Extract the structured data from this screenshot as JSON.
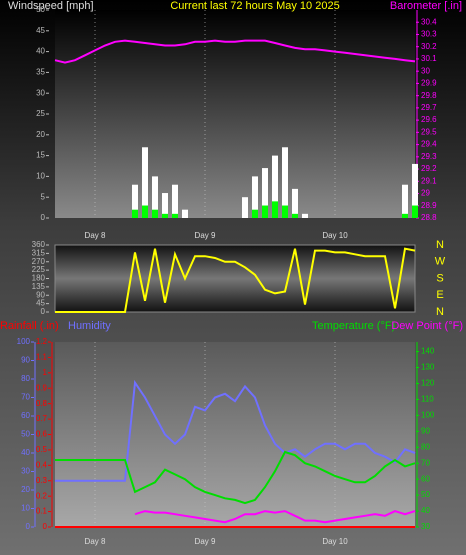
{
  "chart_data": [
    {
      "type": "bar",
      "title": "Current last 72 hours May 10 2025",
      "y_label": "Windspeed [mph]",
      "y2_label": "Barometer [.in]",
      "categories": [
        null,
        null,
        null,
        null,
        "Day 8",
        null,
        null,
        null,
        null,
        null,
        null,
        null,
        null,
        null,
        null,
        "Day 9",
        null,
        null,
        null,
        null,
        null,
        null,
        null,
        null,
        null,
        null,
        null,
        null,
        "Day 10",
        null,
        null,
        null,
        null,
        null,
        null,
        null,
        null
      ],
      "series": [
        {
          "color": "#ffffff",
          "values": [
            0,
            0,
            0,
            0,
            0,
            0,
            0,
            0,
            8,
            17,
            10,
            6,
            8,
            2,
            0,
            0,
            0,
            0,
            0,
            5,
            10,
            12,
            15,
            17,
            7,
            1,
            0,
            0,
            0,
            0,
            0,
            0,
            0,
            0,
            0,
            8,
            13
          ]
        },
        {
          "color": "#00ff00",
          "values": [
            0,
            0,
            0,
            0,
            0,
            0,
            0,
            0,
            2,
            3,
            2,
            1,
            1,
            0,
            0,
            0,
            0,
            0,
            0,
            0,
            2,
            3,
            4,
            3,
            1,
            0,
            0,
            0,
            0,
            0,
            0,
            0,
            0,
            0,
            0,
            1,
            3
          ]
        },
        {
          "color": "#ff00ff",
          "axis": "y2",
          "values": [
            30.09,
            30.07,
            30.09,
            30.13,
            30.17,
            30.21,
            30.24,
            30.25,
            30.24,
            30.23,
            30.22,
            30.21,
            30.21,
            30.22,
            30.24,
            30.24,
            30.25,
            30.24,
            30.24,
            30.25,
            30.25,
            30.25,
            30.23,
            30.21,
            30.19,
            30.18,
            30.18,
            30.17,
            30.16,
            30.15,
            30.14,
            30.13,
            30.12,
            30.11,
            30.1,
            30.09,
            30.08
          ]
        }
      ],
      "ylim": [
        0,
        50
      ],
      "yticks": [
        0,
        5,
        10,
        15,
        20,
        25,
        30,
        35,
        40,
        45,
        50
      ],
      "y2lim": [
        28.8,
        30.5
      ],
      "y2ticks": [
        28.8,
        28.9,
        29,
        29.1,
        29.2,
        29.3,
        29.4,
        29.5,
        29.6,
        29.7,
        29.8,
        29.9,
        30,
        30.1,
        30.2,
        30.3,
        30.4
      ],
      "grid": true
    },
    {
      "type": "line",
      "categories": [
        null,
        null,
        null,
        null,
        null,
        null,
        null,
        null,
        null,
        null,
        null,
        null,
        null,
        null,
        null,
        null,
        null,
        null,
        null,
        null,
        null,
        null,
        null,
        null,
        null,
        null,
        null,
        null,
        null,
        null,
        null,
        null,
        null,
        null,
        null,
        null,
        null
      ],
      "series": [
        {
          "color": "#ffff00",
          "values": [
            0,
            0,
            0,
            0,
            0,
            0,
            0,
            0,
            320,
            60,
            340,
            50,
            310,
            180,
            300,
            300,
            290,
            270,
            270,
            240,
            200,
            120,
            100,
            110,
            340,
            40,
            330,
            330,
            320,
            320,
            310,
            300,
            300,
            300,
            20,
            340,
            330
          ]
        }
      ],
      "ylim": [
        0,
        360
      ],
      "yticks": [
        0,
        45,
        90,
        135,
        180,
        225,
        270,
        315,
        360
      ],
      "compass": [
        "N",
        "W",
        "S",
        "E",
        "N"
      ],
      "grid": true
    },
    {
      "type": "line",
      "y_label": "Rainfall (.in)",
      "y3_label": "Humidity",
      "y2_label": "Temperature (°F)",
      "y2_label_2": "Dew Point (°F)",
      "categories": [
        null,
        null,
        null,
        null,
        "Day 8",
        null,
        null,
        null,
        null,
        null,
        null,
        null,
        null,
        null,
        null,
        "Day 9",
        null,
        null,
        null,
        null,
        null,
        null,
        null,
        null,
        null,
        null,
        null,
        null,
        "Day 10",
        null,
        null,
        null,
        null,
        null,
        null,
        null,
        null
      ],
      "series": [
        {
          "color": "#ff0000",
          "values": [
            0,
            0,
            0,
            0,
            0,
            0,
            0,
            0,
            0,
            0,
            0,
            0,
            0,
            0,
            0,
            0,
            0,
            0,
            0,
            0,
            0,
            0,
            0,
            0,
            0,
            0,
            0,
            0,
            0,
            0,
            0,
            0,
            0,
            0,
            0,
            0,
            0
          ]
        },
        {
          "color": "#7070ff",
          "axis": "y3",
          "values": [
            25,
            25,
            25,
            25,
            25,
            25,
            25,
            25,
            78,
            70,
            60,
            50,
            45,
            50,
            65,
            63,
            70,
            72,
            68,
            76,
            70,
            55,
            45,
            40,
            42,
            38,
            42,
            45,
            45,
            42,
            45,
            45,
            40,
            38,
            35,
            42,
            40
          ]
        },
        {
          "color": "#00dd00",
          "axis": "y2",
          "values": [
            72,
            72,
            72,
            72,
            72,
            72,
            72,
            72,
            52,
            55,
            58,
            66,
            63,
            60,
            55,
            52,
            50,
            48,
            47,
            45,
            47,
            55,
            65,
            77,
            75,
            70,
            68,
            65,
            62,
            60,
            58,
            58,
            62,
            68,
            72,
            68,
            70
          ]
        },
        {
          "color": "#ff00ff",
          "axis": "y2",
          "values": [
            null,
            null,
            null,
            null,
            null,
            null,
            null,
            null,
            38,
            40,
            39,
            39,
            38,
            37,
            36,
            35,
            34,
            33,
            35,
            38,
            38,
            40,
            39,
            40,
            37,
            34,
            34,
            33,
            34,
            35,
            36,
            37,
            38,
            37,
            40,
            38,
            40
          ]
        }
      ],
      "ylim": [
        0,
        1.2
      ],
      "yticks": [
        0,
        0.1,
        0.2,
        0.3,
        0.4,
        0.5,
        0.6,
        0.7,
        0.8,
        0.9,
        1,
        1.1,
        1.2
      ],
      "y3lim": [
        0,
        100
      ],
      "y3ticks": [
        0,
        10,
        20,
        30,
        40,
        50,
        60,
        70,
        80,
        90,
        100
      ],
      "y2lim": [
        30,
        146
      ],
      "y2ticks": [
        30,
        40,
        50,
        60,
        70,
        80,
        90,
        100,
        110,
        120,
        130,
        140
      ],
      "grid": true
    }
  ]
}
